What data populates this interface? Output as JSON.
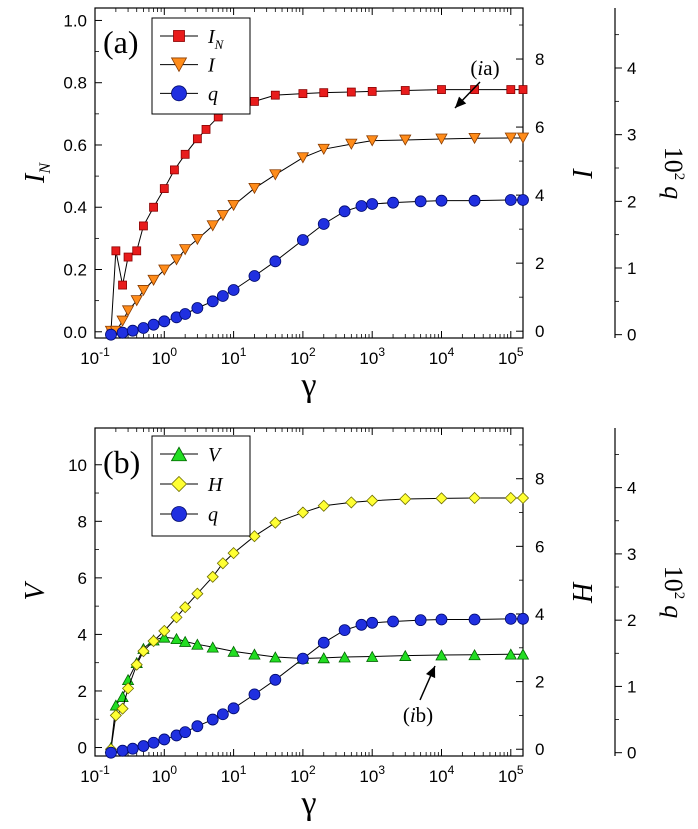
{
  "chart_data": [
    {
      "type": "scatter",
      "panel_label": "(a)",
      "xlabel": "γ",
      "x_scale": "log",
      "xlim": [
        0.1,
        150000
      ],
      "x_ticks": [
        {
          "value": 0.1,
          "base": "10",
          "exp": "-1"
        },
        {
          "value": 1,
          "base": "10",
          "exp": "0"
        },
        {
          "value": 10,
          "base": "10",
          "exp": "1"
        },
        {
          "value": 100,
          "base": "10",
          "exp": "2"
        },
        {
          "value": 1000,
          "base": "10",
          "exp": "3"
        },
        {
          "value": 10000,
          "base": "10",
          "exp": "4"
        },
        {
          "value": 100000,
          "base": "10",
          "exp": "5"
        }
      ],
      "axes": {
        "left": {
          "label_main": "I",
          "label_sub": "N",
          "ylim": [
            -0.02,
            1.04
          ],
          "ticks": [
            "0.0",
            "0.2",
            "0.4",
            "0.6",
            "0.8",
            "1.0"
          ]
        },
        "right": {
          "label_main": "I",
          "ylim": [
            -0.2,
            9.5
          ],
          "ticks": [
            "0",
            "2",
            "4",
            "6",
            "8"
          ]
        },
        "outer": {
          "label_pre": "10",
          "label_exp": "2",
          "label_var": "q",
          "ylim": [
            -0.05,
            4.9
          ],
          "ticks": [
            "0",
            "1",
            "2",
            "3",
            "4"
          ]
        }
      },
      "legend": {
        "placement": "top-left"
      },
      "annotation": {
        "pre": "(",
        "italic": "i",
        "post": "a)"
      },
      "series": [
        {
          "name": "I",
          "sub": "N",
          "axis": "left",
          "marker": "square",
          "color": "#e81c1c",
          "stroke": "#8a0000",
          "x": [
            0.17,
            0.2,
            0.25,
            0.3,
            0.4,
            0.5,
            0.7,
            1,
            1.4,
            2,
            3,
            4,
            6,
            10,
            20,
            40,
            100,
            200,
            500,
            1000,
            3000,
            10000,
            30000,
            100000,
            150000
          ],
          "values": [
            0.0,
            0.26,
            0.15,
            0.24,
            0.26,
            0.34,
            0.4,
            0.46,
            0.52,
            0.57,
            0.62,
            0.65,
            0.69,
            0.72,
            0.74,
            0.76,
            0.765,
            0.768,
            0.77,
            0.772,
            0.775,
            0.778,
            0.778,
            0.778,
            0.778
          ]
        },
        {
          "name": "I",
          "axis": "right",
          "marker": "triangle-down",
          "color": "#ff8c1a",
          "stroke": "#8a3c00",
          "x": [
            0.17,
            0.2,
            0.25,
            0.3,
            0.4,
            0.5,
            0.7,
            1,
            1.5,
            2,
            3,
            5,
            7,
            10,
            20,
            40,
            100,
            200,
            500,
            1000,
            3000,
            10000,
            30000,
            100000,
            150000
          ],
          "values": [
            0.0,
            0.0,
            0.3,
            0.6,
            0.9,
            1.2,
            1.5,
            1.8,
            2.1,
            2.4,
            2.7,
            3.1,
            3.4,
            3.7,
            4.2,
            4.6,
            5.1,
            5.35,
            5.5,
            5.6,
            5.62,
            5.65,
            5.67,
            5.68,
            5.68
          ]
        },
        {
          "name": "q",
          "axis": "outer",
          "marker": "circle",
          "color": "#2030e0",
          "stroke": "#000a6e",
          "x": [
            0.17,
            0.25,
            0.35,
            0.5,
            0.7,
            1,
            1.5,
            2,
            3,
            5,
            7,
            10,
            20,
            40,
            100,
            200,
            400,
            700,
            1000,
            2000,
            5000,
            10000,
            30000,
            100000,
            150000
          ],
          "values": [
            0.0,
            0.03,
            0.06,
            0.1,
            0.15,
            0.2,
            0.26,
            0.31,
            0.4,
            0.5,
            0.58,
            0.67,
            0.88,
            1.1,
            1.42,
            1.66,
            1.85,
            1.93,
            1.96,
            1.98,
            2.0,
            2.01,
            2.01,
            2.02,
            2.02
          ]
        }
      ]
    },
    {
      "type": "scatter",
      "panel_label": "(b)",
      "xlabel": "γ",
      "x_scale": "log",
      "xlim": [
        0.1,
        150000
      ],
      "x_ticks": [
        {
          "value": 0.1,
          "base": "10",
          "exp": "-1"
        },
        {
          "value": 1,
          "base": "10",
          "exp": "0"
        },
        {
          "value": 10,
          "base": "10",
          "exp": "1"
        },
        {
          "value": 100,
          "base": "10",
          "exp": "2"
        },
        {
          "value": 1000,
          "base": "10",
          "exp": "3"
        },
        {
          "value": 10000,
          "base": "10",
          "exp": "4"
        },
        {
          "value": 100000,
          "base": "10",
          "exp": "5"
        }
      ],
      "axes": {
        "left": {
          "label_main": "V",
          "ylim": [
            -0.3,
            11.3
          ],
          "ticks": [
            "0",
            "2",
            "4",
            "6",
            "8",
            "10"
          ]
        },
        "right": {
          "label_main": "H",
          "ylim": [
            -0.2,
            9.5
          ],
          "ticks": [
            "0",
            "2",
            "4",
            "6",
            "8"
          ]
        },
        "outer": {
          "label_pre": "10",
          "label_exp": "2",
          "label_var": "q",
          "ylim": [
            -0.05,
            4.9
          ],
          "ticks": [
            "0",
            "1",
            "2",
            "3",
            "4"
          ]
        }
      },
      "legend": {
        "placement": "top-left"
      },
      "annotation": {
        "pre": "(",
        "italic": "i",
        "post": "b)"
      },
      "series": [
        {
          "name": "V",
          "axis": "left",
          "marker": "triangle-up",
          "color": "#22dd22",
          "stroke": "#006400",
          "x": [
            0.17,
            0.2,
            0.25,
            0.3,
            0.4,
            0.5,
            0.7,
            1,
            1.5,
            2,
            3,
            5,
            10,
            20,
            40,
            100,
            200,
            400,
            1000,
            3000,
            10000,
            30000,
            100000,
            150000
          ],
          "values": [
            0.0,
            1.5,
            1.8,
            2.4,
            3.0,
            3.5,
            3.8,
            3.9,
            3.85,
            3.75,
            3.65,
            3.55,
            3.4,
            3.3,
            3.2,
            3.15,
            3.17,
            3.2,
            3.22,
            3.25,
            3.27,
            3.28,
            3.3,
            3.3
          ]
        },
        {
          "name": "H",
          "axis": "right",
          "marker": "diamond",
          "color": "#ffff33",
          "stroke": "#6e6e00",
          "x": [
            0.17,
            0.2,
            0.25,
            0.3,
            0.4,
            0.5,
            0.7,
            1,
            1.5,
            2,
            3,
            5,
            7,
            10,
            20,
            40,
            100,
            200,
            500,
            1000,
            3000,
            10000,
            30000,
            100000,
            150000
          ],
          "values": [
            0.0,
            1.0,
            1.2,
            1.8,
            2.5,
            2.9,
            3.2,
            3.5,
            3.9,
            4.2,
            4.6,
            5.1,
            5.5,
            5.8,
            6.3,
            6.7,
            7.0,
            7.2,
            7.3,
            7.35,
            7.4,
            7.42,
            7.43,
            7.43,
            7.43
          ]
        },
        {
          "name": "q",
          "axis": "outer",
          "marker": "circle",
          "color": "#2030e0",
          "stroke": "#000a6e",
          "x": [
            0.17,
            0.25,
            0.35,
            0.5,
            0.7,
            1,
            1.5,
            2,
            3,
            5,
            7,
            10,
            20,
            40,
            100,
            200,
            400,
            700,
            1000,
            2000,
            5000,
            10000,
            30000,
            100000,
            150000
          ],
          "values": [
            0.0,
            0.03,
            0.06,
            0.1,
            0.15,
            0.2,
            0.26,
            0.31,
            0.4,
            0.5,
            0.58,
            0.67,
            0.88,
            1.1,
            1.42,
            1.66,
            1.85,
            1.93,
            1.96,
            1.98,
            2.0,
            2.01,
            2.01,
            2.02,
            2.02
          ]
        }
      ]
    }
  ]
}
